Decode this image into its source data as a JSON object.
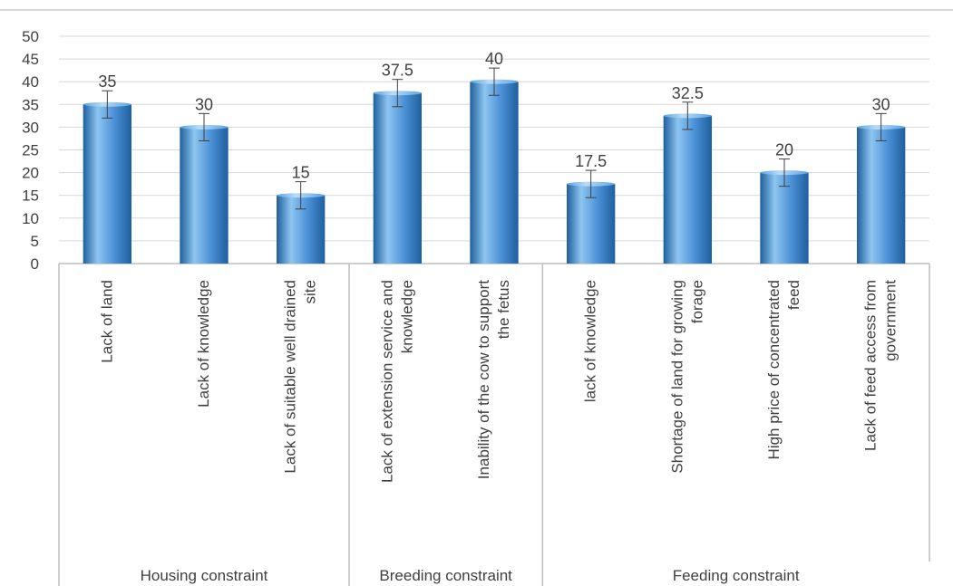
{
  "chart_data": {
    "type": "bar",
    "title": "",
    "xlabel": "",
    "ylabel": "",
    "ylim": [
      0,
      50
    ],
    "yticks": [
      0,
      5,
      10,
      15,
      20,
      25,
      30,
      35,
      40,
      45,
      50
    ],
    "grid": true,
    "legend": "none",
    "error_bar": 3,
    "groups": [
      {
        "name": "Housing constraint",
        "categories": [
          [
            "Lack of land"
          ],
          [
            "Lack of knowledge"
          ],
          [
            "Lack of suitable well drained",
            "site"
          ]
        ],
        "values": [
          35,
          30,
          15
        ],
        "labels": [
          "35",
          "30",
          "15"
        ]
      },
      {
        "name": "Breeding constraint",
        "categories": [
          [
            "Lack of extension service and",
            "knowledge"
          ],
          [
            "Inability of the cow to support",
            "the fetus"
          ]
        ],
        "values": [
          37.5,
          40
        ],
        "labels": [
          "37.5",
          "40"
        ]
      },
      {
        "name": "Feeding constraint",
        "categories": [
          [
            "lack of knowledge"
          ],
          [
            "Shortage of land for growing",
            "forage"
          ],
          [
            "High price of concentrated",
            "feed"
          ],
          [
            "Lack of feed access from",
            "government"
          ]
        ],
        "values": [
          17.5,
          32.5,
          20,
          30
        ],
        "labels": [
          "17.5",
          "32.5",
          "20",
          "30"
        ]
      }
    ]
  },
  "colors": {
    "bar_light": "#8ec5f0",
    "bar_mid": "#4a90d6",
    "bar_dark": "#1f5f9e",
    "grid": "#d9d9d9",
    "axis": "#bfbfbf",
    "error": "#404040"
  }
}
